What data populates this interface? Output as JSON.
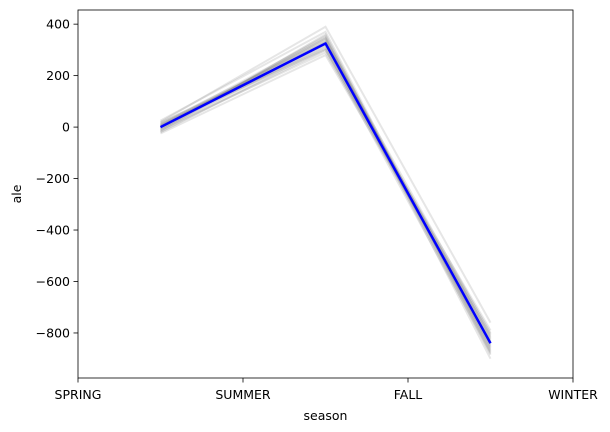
{
  "chart_data": {
    "type": "line",
    "title": "",
    "xlabel": "season",
    "ylabel": "ale",
    "categories": [
      "SPRING",
      "SUMMER",
      "FALL",
      "WINTER"
    ],
    "x_ticks": [
      "SPRING",
      "SUMMER",
      "FALL",
      "WINTER"
    ],
    "x_points": [
      "SPRING-SUMMER",
      "SUMMER-FALL",
      "FALL-WINTER"
    ],
    "y_ticks": [
      400,
      200,
      0,
      -200,
      -400,
      -600,
      -800
    ],
    "y_tick_labels": [
      "400",
      "200",
      "0",
      "−200",
      "−400",
      "−600",
      "−800"
    ],
    "ylim": [
      -975,
      455
    ],
    "grid": false,
    "legend": "none",
    "main_series": {
      "values": [
        0,
        325,
        -840
      ],
      "color": "#0000ff"
    },
    "bootstrap_series": [
      [
        10,
        300,
        -790
      ],
      [
        -15,
        360,
        -880
      ],
      [
        5,
        330,
        -820
      ],
      [
        -20,
        310,
        -860
      ],
      [
        20,
        390,
        -760
      ],
      [
        0,
        345,
        -900
      ],
      [
        -10,
        290,
        -800
      ],
      [
        15,
        335,
        -845
      ],
      [
        -5,
        315,
        -830
      ],
      [
        25,
        370,
        -870
      ],
      [
        -25,
        280,
        -810
      ],
      [
        8,
        350,
        -885
      ],
      [
        -12,
        320,
        -850
      ],
      [
        3,
        340,
        -805
      ],
      [
        18,
        305,
        -835
      ],
      [
        -8,
        355,
        -865
      ],
      [
        12,
        330,
        -825
      ],
      [
        -18,
        300,
        -875
      ],
      [
        6,
        325,
        -815
      ],
      [
        -3,
        345,
        -855
      ]
    ],
    "bootstrap_color": "#808080"
  }
}
